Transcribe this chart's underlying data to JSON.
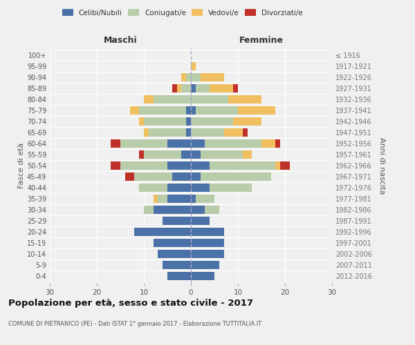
{
  "age_groups": [
    "0-4",
    "5-9",
    "10-14",
    "15-19",
    "20-24",
    "25-29",
    "30-34",
    "35-39",
    "40-44",
    "45-49",
    "50-54",
    "55-59",
    "60-64",
    "65-69",
    "70-74",
    "75-79",
    "80-84",
    "85-89",
    "90-94",
    "95-99",
    "100+"
  ],
  "birth_years": [
    "2012-2016",
    "2007-2011",
    "2002-2006",
    "1997-2001",
    "1992-1996",
    "1987-1991",
    "1982-1986",
    "1977-1981",
    "1972-1976",
    "1967-1971",
    "1962-1966",
    "1957-1961",
    "1952-1956",
    "1947-1951",
    "1942-1946",
    "1937-1941",
    "1932-1936",
    "1927-1931",
    "1922-1926",
    "1917-1921",
    "≤ 1916"
  ],
  "maschi": {
    "celibi": [
      5,
      6,
      7,
      8,
      12,
      6,
      8,
      5,
      5,
      4,
      5,
      2,
      5,
      1,
      1,
      1,
      0,
      0,
      0,
      0,
      0
    ],
    "coniugati": [
      0,
      0,
      0,
      0,
      0,
      0,
      2,
      2,
      6,
      8,
      10,
      8,
      10,
      8,
      9,
      10,
      8,
      2,
      1,
      0,
      0
    ],
    "vedovi": [
      0,
      0,
      0,
      0,
      0,
      0,
      0,
      1,
      0,
      0,
      0,
      0,
      0,
      1,
      1,
      2,
      2,
      1,
      1,
      0,
      0
    ],
    "divorziati": [
      0,
      0,
      0,
      0,
      0,
      0,
      0,
      0,
      0,
      2,
      2,
      1,
      2,
      0,
      0,
      0,
      0,
      1,
      0,
      0,
      0
    ]
  },
  "femmine": {
    "nubili": [
      5,
      6,
      7,
      7,
      7,
      4,
      3,
      1,
      4,
      2,
      4,
      2,
      3,
      0,
      0,
      1,
      0,
      1,
      0,
      0,
      0
    ],
    "coniugate": [
      0,
      0,
      0,
      0,
      0,
      0,
      3,
      4,
      9,
      15,
      14,
      9,
      12,
      7,
      9,
      9,
      8,
      3,
      2,
      0,
      0
    ],
    "vedove": [
      0,
      0,
      0,
      0,
      0,
      0,
      0,
      0,
      0,
      0,
      1,
      2,
      3,
      4,
      6,
      8,
      7,
      5,
      5,
      1,
      0
    ],
    "divorziate": [
      0,
      0,
      0,
      0,
      0,
      0,
      0,
      0,
      0,
      0,
      2,
      0,
      1,
      1,
      0,
      0,
      0,
      1,
      0,
      0,
      0
    ]
  },
  "colors": {
    "celibi": "#4a72a8",
    "coniugati": "#b8ccaa",
    "vedovi": "#f0c060",
    "divorziati": "#c0302a"
  },
  "title": "Popolazione per età, sesso e stato civile - 2017",
  "subtitle": "COMUNE DI PIETRANICO (PE) - Dati ISTAT 1° gennaio 2017 - Elaborazione TUTTITALIA.IT",
  "xlabel_left": "Maschi",
  "xlabel_right": "Femmine",
  "ylabel_left": "Fasce di età",
  "ylabel_right": "Anni di nascita",
  "xlim": 30,
  "background_color": "#f0f0f0"
}
